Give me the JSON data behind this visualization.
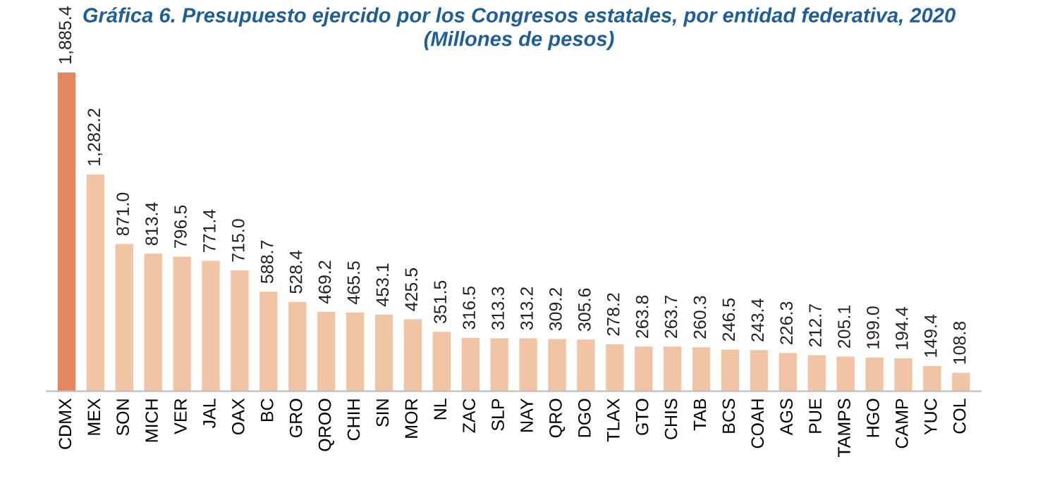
{
  "chart_data": {
    "type": "bar",
    "title": "Gráfica 6. Presupuesto ejercido por los Congresos estatales, por entidad federativa, 2020\n(Millones de pesos)",
    "categories": [
      "CDMX",
      "MEX",
      "SON",
      "MICH",
      "VER",
      "JAL",
      "OAX",
      "BC",
      "GRO",
      "QROO",
      "CHIH",
      "SIN",
      "MOR",
      "NL",
      "ZAC",
      "SLP",
      "NAY",
      "QRO",
      "DGO",
      "TLAX",
      "GTO",
      "CHIS",
      "TAB",
      "BCS",
      "COAH",
      "AGS",
      "PUE",
      "TAMPS",
      "HGO",
      "CAMP",
      "YUC",
      "COL"
    ],
    "values": [
      1885.4,
      1282.2,
      871.0,
      813.4,
      796.5,
      771.4,
      715.0,
      588.7,
      528.4,
      469.2,
      465.5,
      453.1,
      425.5,
      351.5,
      316.5,
      313.3,
      313.2,
      309.2,
      305.6,
      278.2,
      263.8,
      263.7,
      260.3,
      246.5,
      243.4,
      226.3,
      212.7,
      205.1,
      199.0,
      194.4,
      149.4,
      108.8
    ],
    "value_labels": [
      "1,885.4",
      "1,282.2",
      "871.0",
      "813.4",
      "796.5",
      "771.4",
      "715.0",
      "588.7",
      "528.4",
      "469.2",
      "465.5",
      "453.1",
      "425.5",
      "351.5",
      "316.5",
      "313.3",
      "313.2",
      "309.2",
      "305.6",
      "278.2",
      "263.8",
      "263.7",
      "260.3",
      "246.5",
      "243.4",
      "226.3",
      "212.7",
      "205.1",
      "199.0",
      "194.4",
      "149.4",
      "108.8"
    ],
    "colors": [
      "#e2875e",
      "#f2c4a6",
      "#f2c4a6",
      "#f2c4a6",
      "#f2c4a6",
      "#f2c4a6",
      "#f2c4a6",
      "#f2c4a6",
      "#f2c4a6",
      "#f2c4a6",
      "#f2c4a6",
      "#f2c4a6",
      "#f2c4a6",
      "#f2c4a6",
      "#f2c4a6",
      "#f2c4a6",
      "#f2c4a6",
      "#f2c4a6",
      "#f2c4a6",
      "#f2c4a6",
      "#f2c4a6",
      "#f2c4a6",
      "#f2c4a6",
      "#f2c4a6",
      "#f2c4a6",
      "#f2c4a6",
      "#f2c4a6",
      "#f2c4a6",
      "#f2c4a6",
      "#f2c4a6",
      "#f2c4a6",
      "#f2c4a6"
    ],
    "tick_labels": "x",
    "grid": false,
    "legend": false
  }
}
